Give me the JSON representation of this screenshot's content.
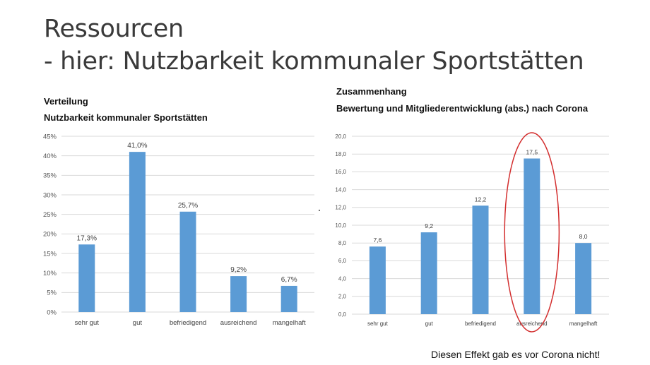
{
  "slide": {
    "title_line1": "Ressourcen",
    "title_line2": "- hier: Nutzbarkeit kommunaler Sportstätten",
    "note": "Diesen Effekt gab es vor Corona nicht!"
  },
  "left_chart": {
    "header1": "Verteilung",
    "header2": "Nutzbarkeit kommunaler Sportstätten"
  },
  "right_chart": {
    "header1": "Zusammenhang",
    "header2": "Bewertung und Mitgliederentwicklung (abs.) nach Corona"
  },
  "colors": {
    "bar": "#5b9bd5",
    "highlight": "#d32f2f",
    "grid": "#d9d9d9",
    "axis_text": "#555555"
  },
  "chart_data": [
    {
      "type": "bar",
      "title": "Nutzbarkeit kommunaler Sportstätten",
      "categories": [
        "sehr gut",
        "gut",
        "befriedigend",
        "ausreichend",
        "mangelhaft"
      ],
      "values": [
        17.3,
        41.0,
        25.7,
        9.2,
        6.7
      ],
      "value_labels": [
        "17,3%",
        "41,0%",
        "25,7%",
        "9,2%",
        "6,7%"
      ],
      "ylim": [
        0,
        45
      ],
      "yticks": [
        0,
        5,
        10,
        15,
        20,
        25,
        30,
        35,
        40,
        45
      ],
      "ytick_labels": [
        "0%",
        "5%",
        "10%",
        "15%",
        "20%",
        "25%",
        "30%",
        "35%",
        "40%",
        "45%"
      ],
      "grid": true,
      "legend": "none"
    },
    {
      "type": "bar",
      "title": "Bewertung und Mitgliederentwicklung (abs.) nach Corona",
      "categories": [
        "sehr gut",
        "gut",
        "befriedigend",
        "ausreichend",
        "mangelhaft"
      ],
      "values": [
        7.6,
        9.2,
        12.2,
        17.5,
        8.0
      ],
      "value_labels": [
        "7,6",
        "9,2",
        "12,2",
        "17,5",
        "8,0"
      ],
      "ylim": [
        0,
        20
      ],
      "yticks": [
        0,
        2,
        4,
        6,
        8,
        10,
        12,
        14,
        16,
        18,
        20
      ],
      "ytick_labels": [
        "0,0",
        "2,0",
        "4,0",
        "6,0",
        "8,0",
        "10,0",
        "12,0",
        "14,0",
        "16,0",
        "18,0",
        "20,0"
      ],
      "grid": true,
      "legend": "none",
      "highlighted_category": "ausreichend"
    }
  ]
}
